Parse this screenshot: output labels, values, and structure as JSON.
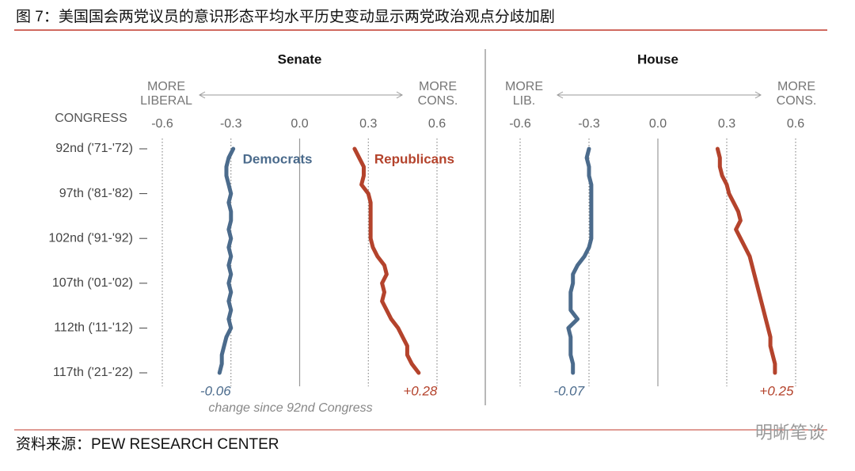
{
  "title": "图 7：美国国会两党议员的意识形态平均水平历史变动显示两党政治观点分歧加剧",
  "source": "资料来源：PEW RESEARCH CENTER",
  "watermark": "明晰笔谈",
  "chart_data": [
    {
      "type": "line",
      "value_axis": "x",
      "title": "Senate",
      "left_label": [
        "MORE",
        "LIBERAL"
      ],
      "right_label": [
        "MORE",
        "CONS."
      ],
      "ylabel": "CONGRESS",
      "categories": [
        "92nd ('71-'72)",
        null,
        null,
        null,
        null,
        "97th ('81-'82)",
        null,
        null,
        null,
        null,
        "102nd ('91-'92)",
        null,
        null,
        null,
        null,
        "107th ('01-'02)",
        null,
        null,
        null,
        null,
        "112th ('11-'12)",
        null,
        null,
        null,
        null,
        "117th ('21-'22)"
      ],
      "xlim": [
        -0.6,
        0.6
      ],
      "xticks": [
        -0.6,
        -0.3,
        {
          "value": 0,
          "label": "0.0"
        },
        0.3,
        0.6
      ],
      "series": [
        {
          "name": "Democrats",
          "color": "#4b6b8c",
          "values": [
            -0.29,
            -0.31,
            -0.32,
            -0.32,
            -0.31,
            -0.3,
            -0.31,
            -0.3,
            -0.3,
            -0.31,
            -0.3,
            -0.31,
            -0.3,
            -0.31,
            -0.3,
            -0.31,
            -0.3,
            -0.31,
            -0.3,
            -0.31,
            -0.3,
            -0.32,
            -0.33,
            -0.34,
            -0.34,
            -0.35
          ],
          "change_label": "-0.06"
        },
        {
          "name": "Republicans",
          "color": "#b4432c",
          "values": [
            0.24,
            0.26,
            0.28,
            0.28,
            0.27,
            0.3,
            0.31,
            0.31,
            0.31,
            0.31,
            0.31,
            0.32,
            0.34,
            0.37,
            0.38,
            0.36,
            0.37,
            0.36,
            0.38,
            0.4,
            0.43,
            0.45,
            0.47,
            0.47,
            0.49,
            0.52
          ],
          "change_label": "+0.28"
        }
      ],
      "note": "change since 92nd Congress"
    },
    {
      "type": "line",
      "value_axis": "x",
      "title": "House",
      "left_label": [
        "MORE",
        "LIB."
      ],
      "right_label": [
        "MORE",
        "CONS."
      ],
      "xlim": [
        -0.6,
        0.6
      ],
      "xticks": [
        -0.6,
        -0.3,
        {
          "value": 0,
          "label": "0.0"
        },
        0.3,
        0.6
      ],
      "series": [
        {
          "color": "#4b6b8c",
          "values": [
            -0.3,
            -0.31,
            -0.3,
            -0.3,
            -0.29,
            -0.29,
            -0.29,
            -0.29,
            -0.29,
            -0.29,
            -0.29,
            -0.3,
            -0.32,
            -0.35,
            -0.37,
            -0.37,
            -0.38,
            -0.38,
            -0.38,
            -0.35,
            -0.39,
            -0.38,
            -0.38,
            -0.38,
            -0.37,
            -0.37
          ],
          "change_label": "-0.07"
        },
        {
          "color": "#b4432c",
          "values": [
            0.26,
            0.27,
            0.27,
            0.28,
            0.3,
            0.31,
            0.33,
            0.35,
            0.36,
            0.34,
            0.36,
            0.38,
            0.4,
            0.41,
            0.42,
            0.43,
            0.44,
            0.45,
            0.46,
            0.47,
            0.48,
            0.49,
            0.49,
            0.5,
            0.51,
            0.51
          ],
          "change_label": "+0.25"
        }
      ]
    }
  ]
}
